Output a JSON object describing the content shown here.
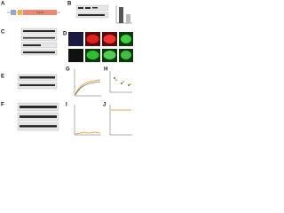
{
  "panels": [
    {
      "label": "A",
      "text": "Tnpo3"
    },
    {
      "label": "B"
    },
    {
      "label": "C"
    },
    {
      "label": "D"
    },
    {
      "label": "E"
    },
    {
      "label": "F"
    },
    {
      "label": "G"
    },
    {
      "label": "H"
    },
    {
      "label": "I"
    },
    {
      "label": "J"
    }
  ]
}
